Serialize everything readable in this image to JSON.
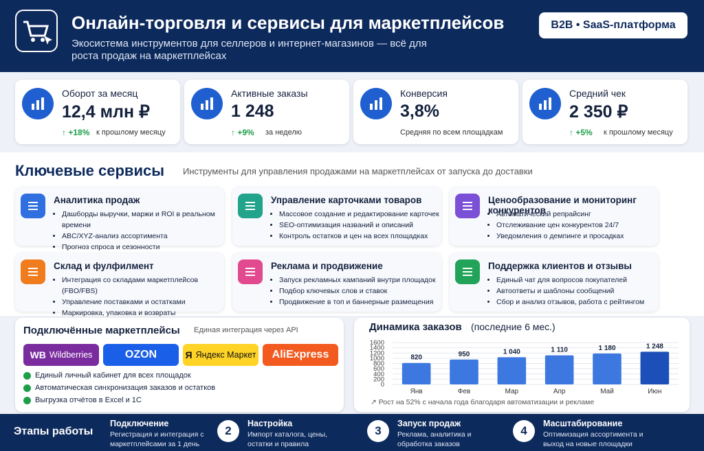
{
  "header": {
    "title": "Онлайн-торговля и сервисы для маркетплейсов",
    "subtitle": "Экосистема инструментов для селлеров и интернет-магазинов — всё для роста продаж на маркетплейсах",
    "badge": "B2B • SaaS-платформа"
  },
  "kpis": [
    {
      "label": "Оборот за месяц",
      "value": "12,4 млн ₽",
      "delta": "↑ +18%",
      "note": "к прошлому месяцу"
    },
    {
      "label": "Активные заказы",
      "value": "1 248",
      "delta": "↑ +9%",
      "note": "за неделю"
    },
    {
      "label": "Конверсия",
      "value": "3,8%",
      "note": "Средняя по всем площадкам"
    },
    {
      "label": "Средний чек",
      "value": "2 350 ₽",
      "delta": "↑ +5%",
      "note": "к прошлому месяцу"
    }
  ],
  "services": {
    "title": "Ключевые сервисы",
    "subtitle": "Инструменты для управления продажами на маркетплейсах от запуска до доставки",
    "items": [
      {
        "title": "Аналитика продаж",
        "bullets": [
          "Дашборды выручки, маржи и ROI в реальном времени",
          "ABC/XYZ-анализ ассортимента",
          "Прогноз спроса и сезонности"
        ]
      },
      {
        "title": "Управление карточками товаров",
        "bullets": [
          "Массовое создание и редактирование карточек",
          "SEO-оптимизация названий и описаний",
          "Контроль остатков и цен на всех площадках"
        ]
      },
      {
        "title": "Ценообразование и мониторинг конкурентов",
        "bullets": [
          "Автоматический репрайсинг",
          "Отслеживание цен конкурентов 24/7",
          "Уведомления о демпинге и просадках"
        ]
      },
      {
        "title": "Склад и фулфилмент",
        "bullets": [
          "Интеграция со складами маркетплейсов (FBO/FBS)",
          "Управление поставками и остатками",
          "Маркировка, упаковка и возвраты"
        ]
      },
      {
        "title": "Реклама и продвижение",
        "bullets": [
          "Запуск рекламных кампаний внутри площадок",
          "Подбор ключевых слов и ставок",
          "Продвижение в топ и баннерные размещения"
        ]
      },
      {
        "title": "Поддержка клиентов и отзывы",
        "bullets": [
          "Единый чат для вопросов покупателей",
          "Автоответы и шаблоны сообщений",
          "Сбор и анализ отзывов, работа с рейтингом"
        ]
      }
    ]
  },
  "marketplaces": {
    "title": "Подключённые маркетплейсы",
    "subtitle": "Единая интеграция через API",
    "logos": [
      {
        "mark": "WB",
        "name": "Wildberries"
      },
      {
        "name": "OZON"
      },
      {
        "mark": "Я",
        "name": "Яндекс Маркет"
      },
      {
        "name": "AliExpress"
      }
    ],
    "features": [
      "Единый личный кабинет для всех площадок",
      "Автоматическая синхронизация заказов и остатков",
      "Выгрузка отчётов в Excel и 1С"
    ]
  },
  "chart_data": {
    "type": "bar",
    "title": "Динамика заказов",
    "subtitle": "(последние 6 мес.)",
    "categories": [
      "Янв",
      "Фев",
      "Мар",
      "Апр",
      "Май",
      "Июн"
    ],
    "values": [
      820,
      950,
      1040,
      1110,
      1180,
      1248
    ],
    "value_labels": [
      "820",
      "950",
      "1 040",
      "1 110",
      "1 180",
      "1 248"
    ],
    "colors": [
      "#3d78e0",
      "#3d78e0",
      "#3d78e0",
      "#3d78e0",
      "#3d78e0",
      "#1d4fb8"
    ],
    "ylim": [
      0,
      1600
    ],
    "yticks": [
      0,
      200,
      400,
      600,
      800,
      1000,
      1200,
      1400,
      1600
    ],
    "grid": true,
    "note": "↗ Рост на 52% с начала года благодаря автоматизации и рекламе"
  },
  "steps": {
    "title": "Этапы работы",
    "items": [
      {
        "title": "Подключение",
        "text": "Регистрация и интеграция с маркетплейсами за 1 день"
      },
      {
        "number": "2",
        "title": "Настройка",
        "text": "Импорт каталога, цены, остатки и правила"
      },
      {
        "number": "3",
        "title": "Запуск продаж",
        "text": "Реклама, аналитика и обработка заказов"
      },
      {
        "number": "4",
        "title": "Масштабирование",
        "text": "Оптимизация ассортимента и выход на новые площадки"
      }
    ]
  }
}
